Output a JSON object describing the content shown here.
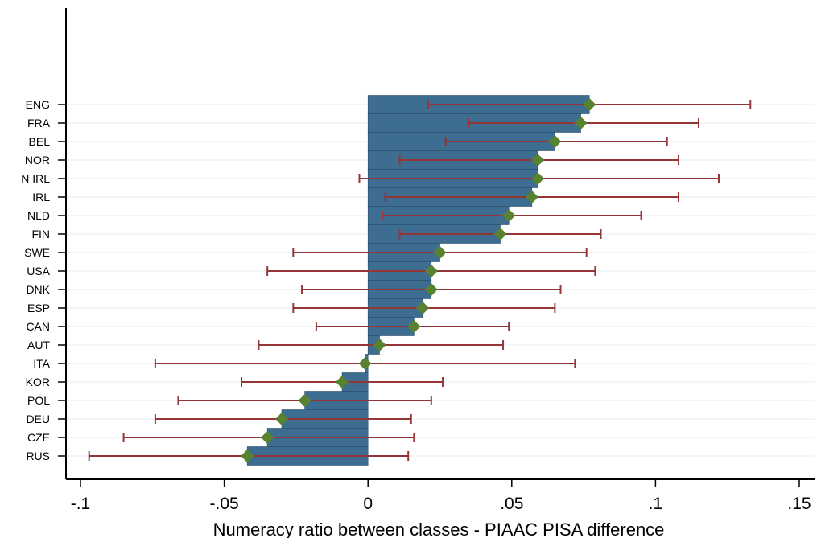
{
  "chart_data": {
    "type": "bar",
    "orientation": "horizontal",
    "xlabel": "Numeracy ratio between classes - PIAAC PISA difference",
    "ylabel": "",
    "title": "",
    "xlim": [
      -0.1,
      0.15
    ],
    "xticks": [
      -0.1,
      -0.05,
      0,
      0.05,
      0.1,
      0.15
    ],
    "xtick_labels": [
      "-.1",
      "-.05",
      "0",
      ".05",
      ".1",
      ".15"
    ],
    "grid": "horizontal",
    "categories": [
      "ENG",
      "FRA",
      "BEL",
      "NOR",
      "N IRL",
      "IRL",
      "NLD",
      "FIN",
      "SWE",
      "USA",
      "DNK",
      "ESP",
      "CAN",
      "AUT",
      "ITA",
      "KOR",
      "POL",
      "DEU",
      "CZE",
      "RUS"
    ],
    "values": [
      0.077,
      0.074,
      0.065,
      0.059,
      0.059,
      0.057,
      0.049,
      0.046,
      0.025,
      0.022,
      0.022,
      0.019,
      0.016,
      0.004,
      -0.001,
      -0.009,
      -0.022,
      -0.03,
      -0.035,
      -0.042
    ],
    "ci_low": [
      0.021,
      0.035,
      0.027,
      0.011,
      -0.003,
      0.006,
      0.005,
      0.011,
      -0.026,
      -0.035,
      -0.023,
      -0.026,
      -0.018,
      -0.038,
      -0.074,
      -0.044,
      -0.066,
      -0.074,
      -0.085,
      -0.097
    ],
    "ci_high": [
      0.133,
      0.115,
      0.104,
      0.108,
      0.122,
      0.108,
      0.095,
      0.081,
      0.076,
      0.079,
      0.067,
      0.065,
      0.049,
      0.047,
      0.072,
      0.026,
      0.022,
      0.015,
      0.016,
      0.014
    ],
    "colors": {
      "bar_fill": "#3e6d92",
      "bar_stroke": "#2c4f6b",
      "error_bar": "#963535",
      "point": "#58822f",
      "grid": "#e6eef2",
      "axis": "#000000"
    }
  }
}
